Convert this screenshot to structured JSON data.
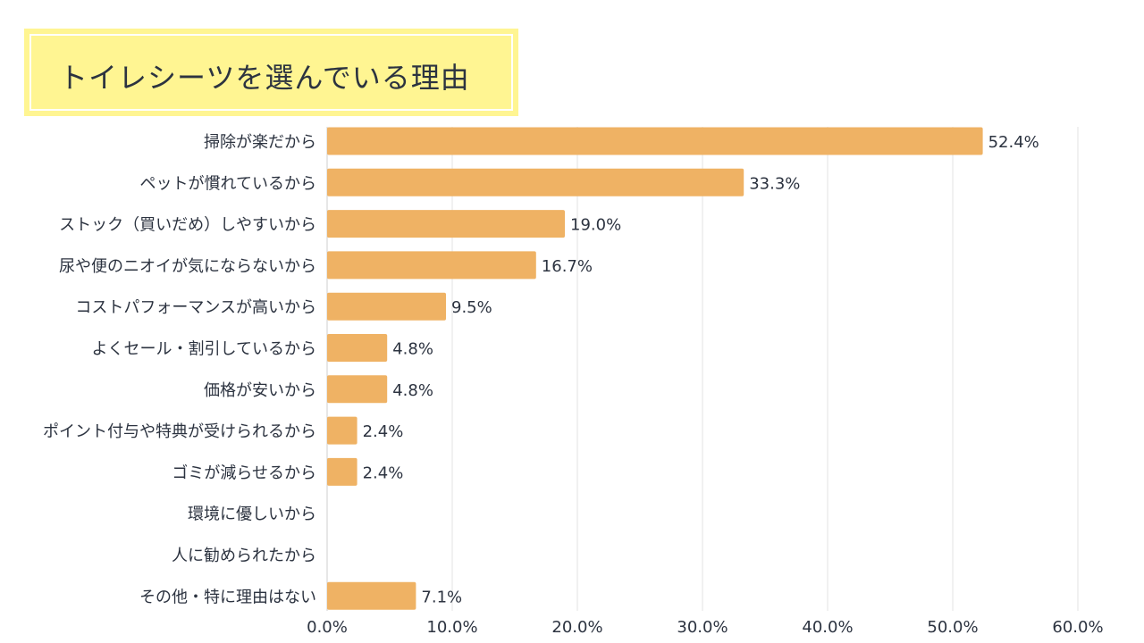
{
  "title": "トイレシーツを選んでいる理由",
  "colors": {
    "bar": "#efb264",
    "title_bg": "#fff592",
    "text": "#2c3340",
    "grid": "#e3e3e3"
  },
  "chart_data": {
    "type": "bar",
    "orientation": "horizontal",
    "categories": [
      "掃除が楽だから",
      "ペットが慣れているから",
      "ストック（買いだめ）しやすいから",
      "尿や便のニオイが気にならないから",
      "コストパフォーマンスが高いから",
      "よくセール・割引しているから",
      "価格が安いから",
      "ポイント付与や特典が受けられるから",
      "ゴミが減らせるから",
      "環境に優しいから",
      "人に勧められたから",
      "その他・特に理由はない"
    ],
    "values": [
      52.4,
      33.3,
      19.0,
      16.7,
      9.5,
      4.8,
      4.8,
      2.4,
      2.4,
      0,
      0,
      7.1
    ],
    "value_labels": [
      "52.4%",
      "33.3%",
      "19.0%",
      "16.7%",
      "9.5%",
      "4.8%",
      "4.8%",
      "2.4%",
      "2.4%",
      "",
      "",
      "7.1%"
    ],
    "xlim": [
      0,
      60
    ],
    "x_ticks": [
      0,
      10,
      20,
      30,
      40,
      50,
      60
    ],
    "x_tick_labels": [
      "0.0%",
      "10.0%",
      "20.0%",
      "30.0%",
      "40.0%",
      "50.0%",
      "60.0%"
    ],
    "grid": true,
    "xlabel": "",
    "ylabel": ""
  }
}
